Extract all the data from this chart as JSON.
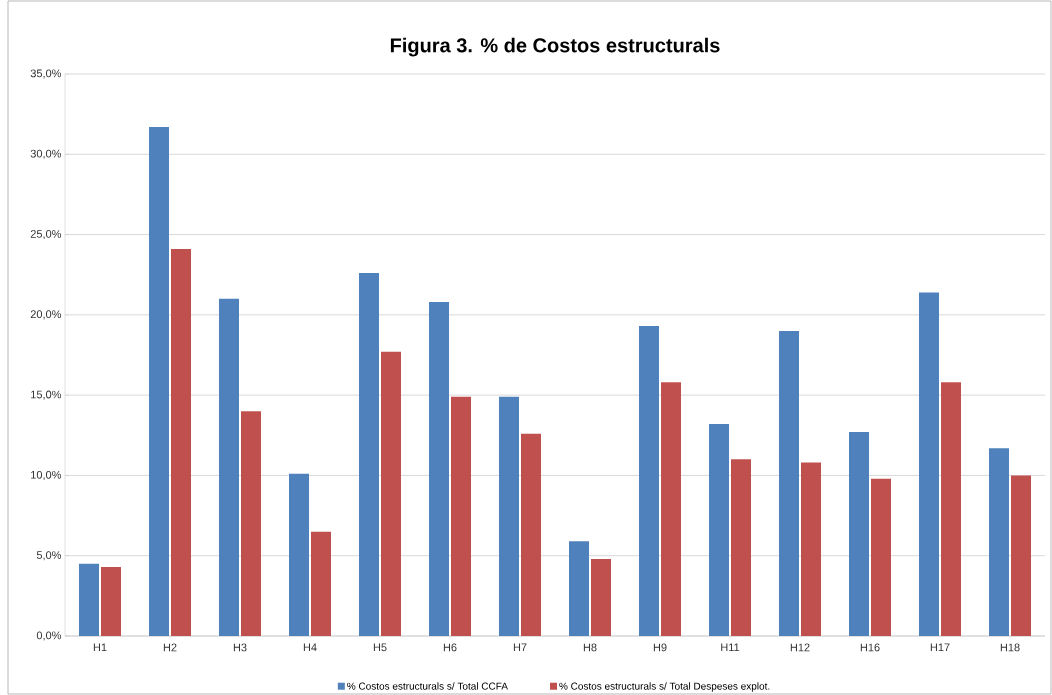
{
  "chart_data": {
    "type": "bar",
    "title": "Figura 3. % de Costos estructurals",
    "categories": [
      "H1",
      "H2",
      "H3",
      "H4",
      "H5",
      "H6",
      "H7",
      "H8",
      "H9",
      "H11",
      "H12",
      "H16",
      "H17",
      "H18"
    ],
    "series": [
      {
        "name": "% Costos estructurals s/ Total CCFA",
        "color": "#4f81bd",
        "values": [
          4.5,
          31.7,
          21.0,
          10.1,
          22.6,
          20.8,
          14.9,
          5.9,
          19.3,
          13.2,
          19.0,
          12.7,
          21.4,
          11.7
        ]
      },
      {
        "name": "% Costos estructurals s/ Total Despeses explot.",
        "color": "#c0504d",
        "values": [
          4.3,
          24.1,
          14.0,
          6.5,
          17.7,
          14.9,
          12.6,
          4.8,
          15.8,
          11.0,
          10.8,
          9.8,
          15.8,
          10.0
        ]
      }
    ],
    "ylim": [
      0,
      35
    ],
    "yticks": [
      {
        "value": 0,
        "label": "0,0%"
      },
      {
        "value": 5,
        "label": "5,0%"
      },
      {
        "value": 10,
        "label": "10,0%"
      },
      {
        "value": 15,
        "label": "15,0%"
      },
      {
        "value": 20,
        "label": "20,0%"
      },
      {
        "value": 25,
        "label": "25,0%"
      },
      {
        "value": 30,
        "label": "30,0%"
      },
      {
        "value": 35,
        "label": "35,0%"
      }
    ],
    "grid": "y",
    "legend": "bottom"
  }
}
